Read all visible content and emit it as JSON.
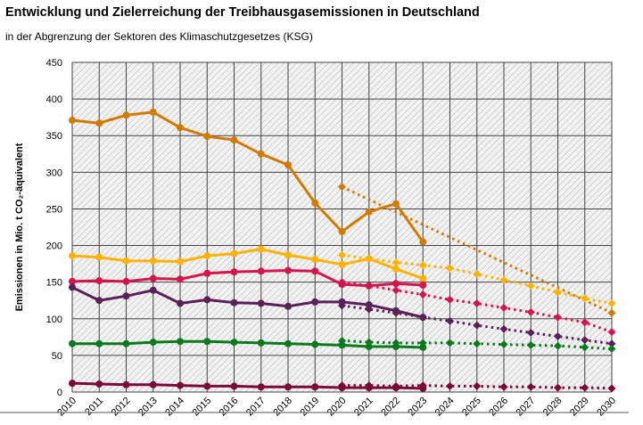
{
  "title": "Entwicklung und Zielerreichung der Treibhausgasemissionen in Deutschland",
  "subtitle": "in der Abgrenzung der Sektoren des Klimaschutzgesetzes (KSG)",
  "chart_data": {
    "type": "line",
    "ylabel": "Emissionen in Mio. t CO₂-äquivalent",
    "xlabel": "",
    "ylim": [
      0,
      450
    ],
    "yticks": [
      0,
      50,
      100,
      150,
      200,
      250,
      300,
      350,
      400,
      450
    ],
    "x": [
      2010,
      2011,
      2012,
      2013,
      2014,
      2015,
      2016,
      2017,
      2018,
      2019,
      2020,
      2021,
      2022,
      2023,
      2024,
      2025,
      2026,
      2027,
      2028,
      2029,
      2030
    ],
    "grid": true,
    "series": [
      {
        "color": "#D17A00",
        "style": "solid",
        "marker": "circle",
        "x": [
          2010,
          2011,
          2012,
          2013,
          2014,
          2015,
          2016,
          2017,
          2018,
          2019,
          2020,
          2021,
          2022,
          2023
        ],
        "values": [
          371,
          367,
          378,
          382,
          361,
          349,
          344,
          325,
          310,
          258,
          219,
          246,
          257,
          205
        ]
      },
      {
        "color": "#D17A00",
        "style": "dotted",
        "marker": "diamond",
        "x": [
          2020,
          2030
        ],
        "values": [
          280,
          108
        ]
      },
      {
        "color": "#FFB300",
        "style": "solid",
        "marker": "circle",
        "x": [
          2010,
          2011,
          2012,
          2013,
          2014,
          2015,
          2016,
          2017,
          2018,
          2019,
          2020,
          2021,
          2022,
          2023
        ],
        "values": [
          186,
          184,
          179,
          179,
          178,
          186,
          189,
          195,
          187,
          181,
          174,
          182,
          168,
          155
        ]
      },
      {
        "color": "#FFB300",
        "style": "dotted",
        "marker": "diamond",
        "x": [
          2020,
          2021,
          2022,
          2023,
          2024,
          2025,
          2026,
          2027,
          2028,
          2029,
          2030
        ],
        "values": [
          187,
          182,
          177,
          173,
          169,
          161,
          153,
          145,
          136,
          128,
          121
        ]
      },
      {
        "color": "#D4154F",
        "style": "solid",
        "marker": "circle",
        "x": [
          2010,
          2011,
          2012,
          2013,
          2014,
          2015,
          2016,
          2017,
          2018,
          2019,
          2020,
          2021,
          2022,
          2023
        ],
        "values": [
          151,
          152,
          151,
          155,
          154,
          162,
          164,
          165,
          166,
          165,
          147,
          145,
          148,
          146
        ]
      },
      {
        "color": "#D4154F",
        "style": "dotted",
        "marker": "diamond",
        "x": [
          2020,
          2021,
          2022,
          2023,
          2024,
          2025,
          2026,
          2027,
          2028,
          2029,
          2030
        ],
        "values": [
          150,
          145,
          139,
          133,
          126,
          121,
          115,
          109,
          102,
          95,
          82
        ]
      },
      {
        "color": "#5A2058",
        "style": "solid",
        "marker": "circle",
        "x": [
          2010,
          2011,
          2012,
          2013,
          2014,
          2015,
          2016,
          2017,
          2018,
          2019,
          2020,
          2021,
          2022,
          2023
        ],
        "values": [
          143,
          125,
          131,
          139,
          121,
          126,
          122,
          121,
          117,
          123,
          123,
          119,
          111,
          102
        ]
      },
      {
        "color": "#5A2058",
        "style": "dotted",
        "marker": "diamond",
        "x": [
          2020,
          2021,
          2022,
          2023,
          2024,
          2025,
          2026,
          2027,
          2028,
          2029,
          2030
        ],
        "values": [
          118,
          113,
          108,
          102,
          97,
          91,
          86,
          81,
          76,
          71,
          66
        ]
      },
      {
        "color": "#0B7A1F",
        "style": "solid",
        "marker": "circle",
        "x": [
          2010,
          2011,
          2012,
          2013,
          2014,
          2015,
          2016,
          2017,
          2018,
          2019,
          2020,
          2021,
          2022,
          2023
        ],
        "values": [
          66,
          66,
          66,
          68,
          69,
          69,
          68,
          67,
          66,
          65,
          64,
          62,
          62,
          61
        ]
      },
      {
        "color": "#0B7A1F",
        "style": "dotted",
        "marker": "diamond",
        "x": [
          2020,
          2021,
          2022,
          2023,
          2024,
          2025,
          2026,
          2027,
          2028,
          2029,
          2030
        ],
        "values": [
          70,
          68,
          67,
          67,
          67,
          66,
          65,
          64,
          63,
          61,
          59
        ]
      },
      {
        "color": "#7A0B36",
        "style": "solid",
        "marker": "circle",
        "x": [
          2010,
          2011,
          2012,
          2013,
          2014,
          2015,
          2016,
          2017,
          2018,
          2019,
          2020,
          2021,
          2022,
          2023
        ],
        "values": [
          12,
          11,
          10,
          10,
          9,
          8,
          8,
          7,
          7,
          7,
          6,
          6,
          6,
          5
        ]
      },
      {
        "color": "#7A0B36",
        "style": "dotted",
        "marker": "diamond",
        "x": [
          2020,
          2021,
          2022,
          2023,
          2024,
          2025,
          2026,
          2027,
          2028,
          2029,
          2030
        ],
        "values": [
          9,
          9,
          8,
          9,
          8,
          8,
          7,
          7,
          6,
          6,
          5
        ]
      }
    ]
  }
}
